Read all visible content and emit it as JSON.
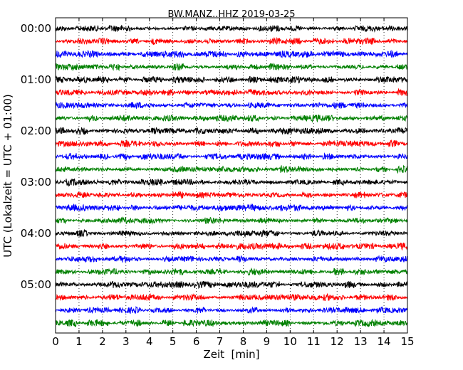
{
  "chart_data": {
    "type": "line",
    "title": "BW.MANZ..HHZ 2019-03-25",
    "xlabel": "Zeit  [min]",
    "ylabel": "UTC (Lokalzeit = UTC + 01:00)",
    "xlim": [
      0,
      15
    ],
    "x_ticks": [
      0,
      1,
      2,
      3,
      4,
      5,
      6,
      7,
      8,
      9,
      10,
      11,
      12,
      13,
      14,
      15
    ],
    "y_tick_labels": [
      "00:00",
      "01:00",
      "02:00",
      "03:00",
      "04:00",
      "05:00"
    ],
    "trace_colors": [
      "#000000",
      "#ff0000",
      "#0000ff",
      "#008000"
    ],
    "trace_count": 24,
    "grid": "vertical dotted at each minute"
  }
}
